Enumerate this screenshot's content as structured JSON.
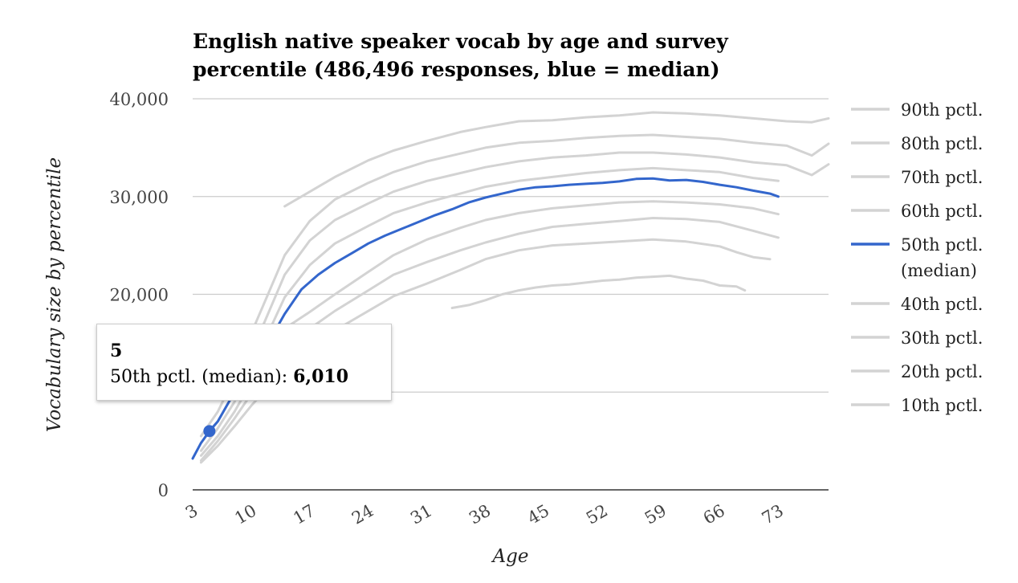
{
  "chart_data": {
    "type": "line",
    "title_lines": [
      "English native speaker vocab by age and survey",
      "percentile (486,496 responses, blue = median)"
    ],
    "xlabel": "Age",
    "ylabel": "Vocabulary size by percentile",
    "ylim": [
      0,
      40000
    ],
    "xlim": [
      3,
      79
    ],
    "yticks": [
      0,
      10000,
      20000,
      30000,
      40000
    ],
    "ytick_labels": [
      "0",
      "",
      "20,000",
      "30,000",
      "40,000"
    ],
    "xticks": [
      3,
      10,
      17,
      24,
      31,
      38,
      45,
      52,
      59,
      66,
      73
    ],
    "xtick_labels": [
      "3",
      "10",
      "17",
      "24",
      "31",
      "38",
      "45",
      "52",
      "59",
      "66",
      "73"
    ],
    "grid": true,
    "legend_position": "right",
    "series": [
      {
        "name": "90th pctl.",
        "color": "#d3d3d3",
        "x": [
          14,
          17,
          20,
          24,
          27,
          31,
          35,
          38,
          42,
          46,
          50,
          54,
          58,
          62,
          66,
          70,
          74,
          77,
          79
        ],
        "values": [
          29000,
          30500,
          32000,
          33700,
          34700,
          35700,
          36600,
          37100,
          37700,
          37800,
          38100,
          38300,
          38600,
          38500,
          38300,
          38000,
          37700,
          37600,
          38000
        ]
      },
      {
        "name": "80th pctl.",
        "color": "#d3d3d3",
        "x": [
          4,
          6,
          8,
          10,
          12,
          14,
          17,
          20,
          24,
          27,
          31,
          35,
          38,
          42,
          46,
          50,
          54,
          58,
          62,
          66,
          70,
          74,
          77,
          79
        ],
        "values": [
          5500,
          8000,
          11500,
          16000,
          20000,
          24000,
          27500,
          29700,
          31400,
          32500,
          33600,
          34400,
          35000,
          35500,
          35700,
          36000,
          36200,
          36300,
          36100,
          35900,
          35500,
          35200,
          34200,
          35400
        ]
      },
      {
        "name": "70th pctl.",
        "color": "#d3d3d3",
        "x": [
          4,
          6,
          8,
          10,
          12,
          14,
          17,
          20,
          24,
          27,
          31,
          35,
          38,
          42,
          46,
          50,
          54,
          58,
          62,
          66,
          70,
          74,
          77,
          79
        ],
        "values": [
          4800,
          7000,
          10000,
          14000,
          18000,
          22000,
          25500,
          27600,
          29300,
          30500,
          31600,
          32400,
          33000,
          33600,
          34000,
          34200,
          34500,
          34500,
          34300,
          34000,
          33500,
          33200,
          32200,
          33300
        ]
      },
      {
        "name": "60th pctl.",
        "color": "#d3d3d3",
        "x": [
          4,
          6,
          8,
          10,
          12,
          14,
          17,
          20,
          24,
          27,
          31,
          35,
          38,
          42,
          46,
          50,
          54,
          58,
          62,
          66,
          70,
          73
        ],
        "values": [
          4000,
          6300,
          9000,
          12500,
          16000,
          19700,
          23000,
          25200,
          27000,
          28300,
          29400,
          30300,
          31000,
          31600,
          32000,
          32400,
          32700,
          32900,
          32700,
          32500,
          31900,
          31600
        ]
      },
      {
        "name": "50th pctl. (median)",
        "color": "#3366cc",
        "x": [
          3,
          4,
          5,
          6,
          7,
          8,
          10,
          12,
          14,
          16,
          18,
          20,
          22,
          24,
          26,
          28,
          30,
          32,
          34,
          36,
          38,
          40,
          42,
          44,
          46,
          48,
          50,
          52,
          54,
          56,
          58,
          60,
          62,
          64,
          66,
          68,
          70,
          72,
          73
        ],
        "values": [
          3200,
          4800,
          6010,
          7000,
          8500,
          10000,
          12500,
          15000,
          18000,
          20500,
          22000,
          23200,
          24200,
          25200,
          26000,
          26700,
          27400,
          28100,
          28700,
          29400,
          29900,
          30300,
          30700,
          30950,
          31050,
          31200,
          31300,
          31400,
          31550,
          31800,
          31850,
          31650,
          31700,
          31500,
          31200,
          30950,
          30600,
          30300,
          30000
        ]
      },
      {
        "name": "40th pctl.",
        "color": "#d3d3d3",
        "x": [
          4,
          6,
          8,
          10,
          12,
          14,
          17,
          20,
          24,
          27,
          31,
          35,
          38,
          42,
          46,
          50,
          54,
          58,
          62,
          66,
          70,
          73
        ],
        "values": [
          3500,
          5500,
          8000,
          11000,
          14000,
          16500,
          18200,
          20000,
          22300,
          24000,
          25600,
          26800,
          27600,
          28300,
          28800,
          29100,
          29400,
          29500,
          29400,
          29200,
          28800,
          28200
        ]
      },
      {
        "name": "30th pctl.",
        "color": "#d3d3d3",
        "x": [
          4,
          6,
          8,
          10,
          12,
          14,
          17,
          20,
          24,
          27,
          31,
          35,
          38,
          42,
          46,
          50,
          54,
          58,
          62,
          66,
          70,
          73
        ],
        "values": [
          3000,
          5000,
          7300,
          9800,
          12200,
          14200,
          16500,
          18300,
          20400,
          22000,
          23300,
          24500,
          25300,
          26200,
          26900,
          27200,
          27500,
          27800,
          27700,
          27400,
          26500,
          25800
        ]
      },
      {
        "name": "20th pctl.",
        "color": "#d3d3d3",
        "x": [
          4,
          6,
          8,
          10,
          12,
          14,
          17,
          20,
          24,
          27,
          31,
          35,
          38,
          42,
          46,
          50,
          54,
          58,
          62,
          66,
          68,
          70,
          72
        ],
        "values": [
          2800,
          4500,
          6500,
          8600,
          10500,
          12200,
          14500,
          16300,
          18300,
          19800,
          21100,
          22500,
          23600,
          24500,
          25000,
          25200,
          25400,
          25600,
          25400,
          24900,
          24300,
          23800,
          23600
        ]
      },
      {
        "name": "10th pctl.",
        "color": "#d3d3d3",
        "x": [
          34,
          36,
          38,
          40,
          42,
          44,
          46,
          48,
          50,
          52,
          54,
          56,
          58,
          60,
          62,
          64,
          66,
          68,
          69
        ],
        "values": [
          18600,
          18900,
          19400,
          20000,
          20400,
          20700,
          20900,
          21000,
          21200,
          21400,
          21500,
          21700,
          21800,
          21900,
          21600,
          21400,
          20900,
          20800,
          20400
        ]
      }
    ]
  },
  "legend": [
    {
      "label_lines": [
        "90th pctl."
      ],
      "color": "#d3d3d3"
    },
    {
      "label_lines": [
        "80th pctl."
      ],
      "color": "#d3d3d3"
    },
    {
      "label_lines": [
        "70th pctl."
      ],
      "color": "#d3d3d3"
    },
    {
      "label_lines": [
        "60th pctl."
      ],
      "color": "#d3d3d3"
    },
    {
      "label_lines": [
        "50th pctl.",
        "(median)"
      ],
      "color": "#3366cc"
    },
    {
      "label_lines": [
        "40th pctl."
      ],
      "color": "#d3d3d3"
    },
    {
      "label_lines": [
        "30th pctl."
      ],
      "color": "#d3d3d3"
    },
    {
      "label_lines": [
        "20th pctl."
      ],
      "color": "#d3d3d3"
    },
    {
      "label_lines": [
        "10th pctl."
      ],
      "color": "#d3d3d3"
    }
  ],
  "tooltip": {
    "title": "5",
    "series_label": "50th pctl. (median): ",
    "value": "6,010",
    "point": {
      "x": 5,
      "y": 6010
    }
  }
}
